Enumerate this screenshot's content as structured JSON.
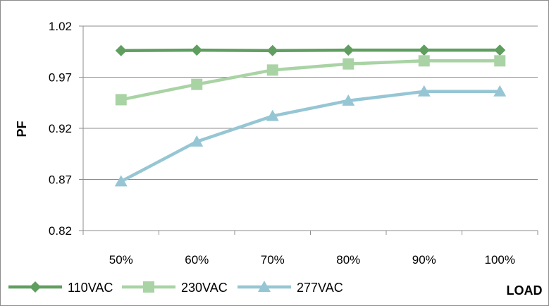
{
  "chart_data": {
    "type": "line",
    "title": "",
    "xlabel": "LOAD",
    "ylabel": "PF",
    "categories": [
      "50%",
      "60%",
      "70%",
      "80%",
      "90%",
      "100%"
    ],
    "ylim": [
      0.82,
      1.02
    ],
    "yticks": [
      "0.82",
      "0.87",
      "0.92",
      "0.97",
      "1.02"
    ],
    "grid": "horizontal",
    "legend_position": "bottom-left",
    "series": [
      {
        "name": "110VAC",
        "values": [
          0.996,
          0.9965,
          0.996,
          0.9965,
          0.9965,
          0.9965
        ],
        "color": "#5f9e5f",
        "marker": "diamond"
      },
      {
        "name": "230VAC",
        "values": [
          0.948,
          0.963,
          0.977,
          0.983,
          0.986,
          0.986
        ],
        "color": "#a9d3a4",
        "marker": "square"
      },
      {
        "name": "277VAC",
        "values": [
          0.868,
          0.907,
          0.932,
          0.947,
          0.956,
          0.956
        ],
        "color": "#96c6d4",
        "marker": "triangle"
      }
    ]
  }
}
